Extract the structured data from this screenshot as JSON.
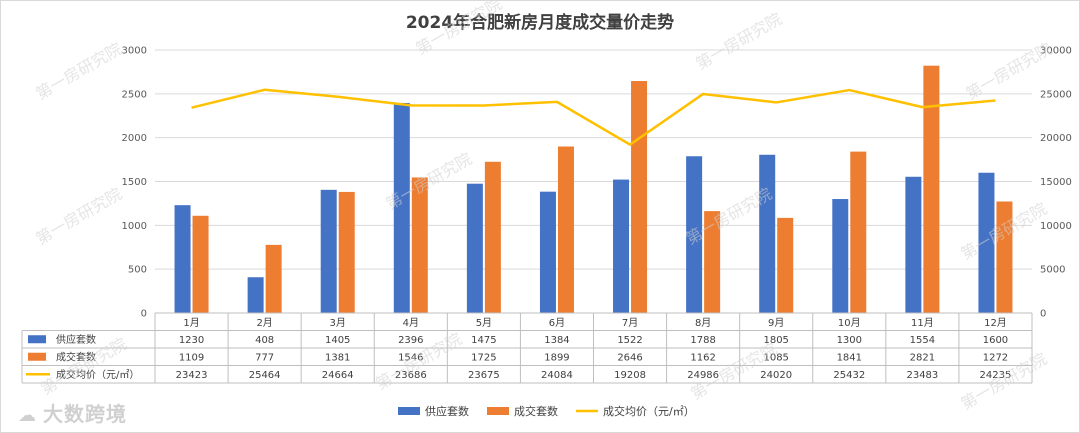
{
  "chart_data": {
    "type": "bar",
    "title": "2024年合肥新房月度成交量价走势",
    "categories": [
      "1月",
      "2月",
      "3月",
      "4月",
      "5月",
      "6月",
      "7月",
      "8月",
      "9月",
      "10月",
      "11月",
      "12月"
    ],
    "series": [
      {
        "name": "供应套数",
        "type": "bar",
        "axis": "left",
        "color": "#4472C4",
        "values": [
          1230,
          408,
          1405,
          2396,
          1475,
          1384,
          1522,
          1788,
          1805,
          1300,
          1554,
          1600
        ]
      },
      {
        "name": "成交套数",
        "type": "bar",
        "axis": "left",
        "color": "#ED7D31",
        "values": [
          1109,
          777,
          1381,
          1546,
          1725,
          1899,
          2646,
          1162,
          1085,
          1841,
          2821,
          1272
        ]
      },
      {
        "name": "成交均价（元/㎡）",
        "type": "line",
        "axis": "right",
        "color": "#FFC000",
        "values": [
          23423,
          25464,
          24664,
          23686,
          23675,
          24084,
          19208,
          24986,
          24020,
          25432,
          23483,
          24235
        ]
      }
    ],
    "ylim": [
      0,
      3000
    ],
    "yticks": [
      0,
      500,
      1000,
      1500,
      2000,
      2500,
      3000
    ],
    "y2lim": [
      0,
      30000
    ],
    "y2ticks": [
      0,
      5000,
      10000,
      15000,
      20000,
      25000,
      30000
    ],
    "grid": true,
    "legend_position": "bottom",
    "data_table": true
  },
  "watermark": {
    "text": "第一房研究院",
    "brand": "大数跨境",
    "brand_icon": "cloud-logo-icon"
  }
}
